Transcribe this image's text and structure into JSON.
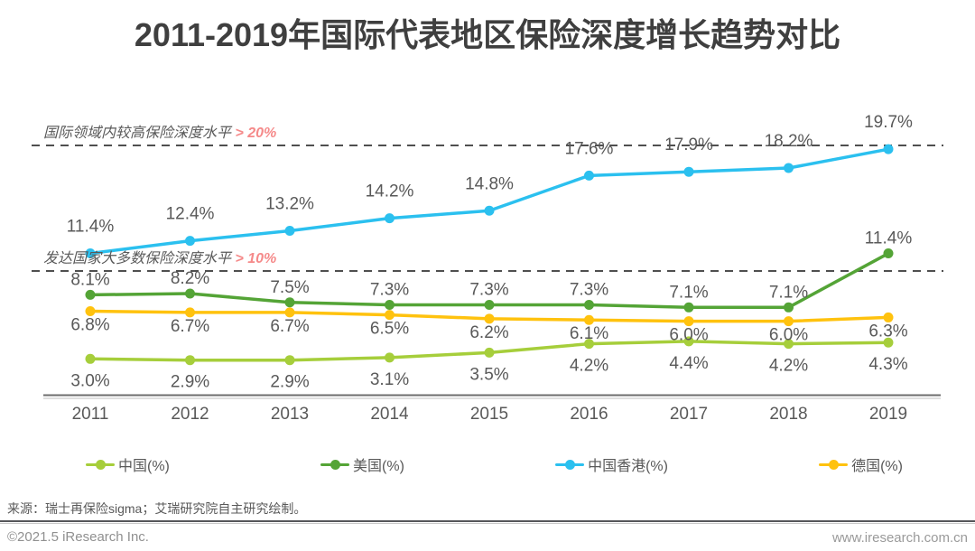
{
  "title": "2011-2019年国际代表地区保险深度增长趋势对比",
  "chart_data": {
    "type": "line",
    "categories": [
      "2011",
      "2012",
      "2013",
      "2014",
      "2015",
      "2016",
      "2017",
      "2018",
      "2019"
    ],
    "series": [
      {
        "name": "中国(%)",
        "color": "#A6CE3B",
        "values": [
          3.0,
          2.9,
          2.9,
          3.1,
          3.5,
          4.2,
          4.4,
          4.2,
          4.3
        ],
        "label_placement": "below-far"
      },
      {
        "name": "美国(%)",
        "color": "#54A436",
        "values": [
          8.1,
          8.2,
          7.5,
          7.3,
          7.3,
          7.3,
          7.1,
          7.1,
          11.4
        ],
        "label_placement": "above"
      },
      {
        "name": "中国香港(%)",
        "color": "#2BC0EF",
        "values": [
          11.4,
          12.4,
          13.2,
          14.2,
          14.8,
          17.6,
          17.9,
          18.2,
          19.7
        ],
        "label_placement": "above-far"
      },
      {
        "name": "德国(%)",
        "color": "#FFC20E",
        "values": [
          6.8,
          6.7,
          6.7,
          6.5,
          6.2,
          6.1,
          6.0,
          6.0,
          6.3
        ],
        "label_placement": "below"
      }
    ],
    "reference_lines": [
      {
        "value": 20,
        "label": "国际领域内较高保险深度水平",
        "threshold_label": "> 20%",
        "threshold_color": "#F58A8A"
      },
      {
        "value": 10,
        "label": "发达国家大多数保险深度水平",
        "threshold_label": "> 10%",
        "threshold_color": "#F58A8A"
      }
    ],
    "value_suffix": "%",
    "title": "2011-2019年国际代表地区保险深度增长趋势对比",
    "xlabel": "",
    "ylabel": "",
    "ylim": [
      0,
      21.5
    ],
    "grid": false,
    "legend_position": "bottom",
    "label_color": "#595959",
    "axis_color": "#595959",
    "dash_color": "#4f4f4f"
  },
  "footer": {
    "source": "来源：瑞士再保险sigma；艾瑞研究院自主研究绘制。",
    "copyright": "©2021.5 iResearch Inc.",
    "website": "www.iresearch.com.cn"
  }
}
